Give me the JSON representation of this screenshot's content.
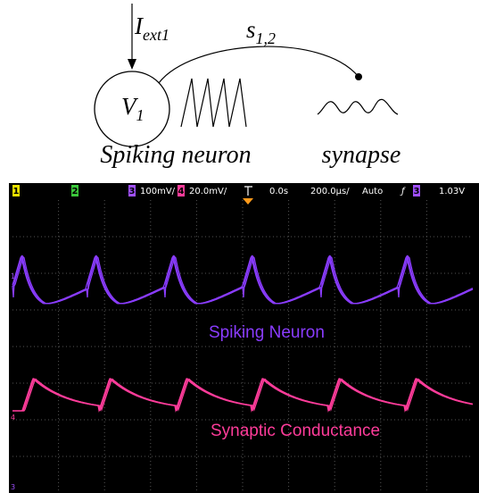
{
  "diagram": {
    "input": {
      "main": "I",
      "sub": "ext1"
    },
    "synapse_weight": {
      "main": "s",
      "sub": "1,2"
    },
    "neuron": {
      "main": "V",
      "sub": "1"
    },
    "neuron_label": "Spiking neuron",
    "synapse_label": "synapse"
  },
  "scope": {
    "header": {
      "ch1": "1",
      "ch2": "2",
      "ch3": "3",
      "ch3_scale": "100mV/",
      "ch4": "4",
      "ch4_scale": "20.0mV/",
      "time_offset": "0.0s",
      "time_scale": "200.0µs/",
      "mode": "Auto",
      "trigger_ch": "3",
      "trigger_level": "1.03V"
    },
    "markers": [
      "1",
      "4",
      "3"
    ],
    "traces": [
      "Spiking Neuron",
      "Synaptic Conductance"
    ]
  }
}
